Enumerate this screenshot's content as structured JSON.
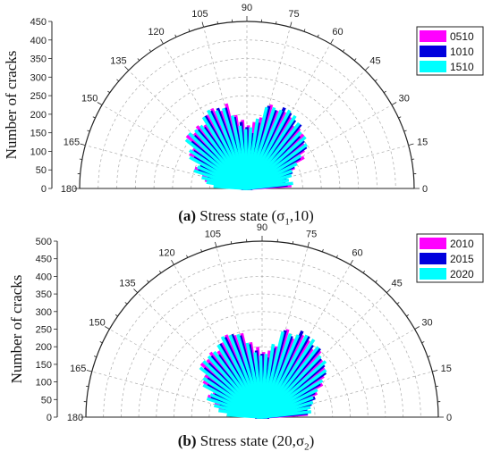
{
  "chart_data": [
    {
      "type": "polar-bar",
      "panel_label": "(a)",
      "caption": "Stress state (σ1,10)",
      "caption_parts": {
        "label": "(a)",
        "text": "Stress state (",
        "sym": "σ",
        "sub": "1",
        "rest": ",10)"
      },
      "ylabel": "Number of cracks",
      "rlim": [
        0,
        450
      ],
      "rticks": [
        0,
        50,
        100,
        150,
        200,
        250,
        300,
        350,
        400,
        450
      ],
      "angle_ticks": [
        0,
        15,
        30,
        45,
        60,
        75,
        90,
        105,
        120,
        135,
        150,
        165,
        180
      ],
      "angles": [
        0,
        5,
        10,
        15,
        20,
        25,
        30,
        35,
        40,
        45,
        50,
        55,
        60,
        65,
        70,
        75,
        80,
        85,
        90,
        95,
        100,
        105,
        110,
        115,
        120,
        125,
        130,
        135,
        140,
        145,
        150,
        155,
        160,
        165,
        170,
        175,
        180
      ],
      "legend_position": "top-right",
      "series": [
        {
          "name": "0510",
          "color": "#ff00ff",
          "values": [
            10,
            120,
            100,
            105,
            120,
            140,
            175,
            185,
            195,
            210,
            215,
            210,
            225,
            230,
            225,
            235,
            195,
            180,
            170,
            185,
            200,
            235,
            220,
            235,
            225,
            205,
            215,
            205,
            215,
            180,
            180,
            140,
            150,
            125,
            115,
            80,
            10
          ]
        },
        {
          "name": "1010",
          "color": "#0000dd",
          "values": [
            15,
            110,
            105,
            110,
            130,
            140,
            165,
            195,
            200,
            200,
            225,
            225,
            235,
            240,
            225,
            230,
            180,
            150,
            165,
            180,
            195,
            225,
            230,
            230,
            225,
            200,
            205,
            200,
            195,
            175,
            165,
            140,
            140,
            110,
            95,
            70,
            15
          ]
        },
        {
          "name": "1510",
          "color": "#00ffff",
          "values": [
            10,
            125,
            115,
            125,
            130,
            150,
            170,
            200,
            210,
            210,
            225,
            235,
            240,
            230,
            230,
            225,
            190,
            165,
            160,
            170,
            200,
            225,
            225,
            235,
            225,
            210,
            210,
            215,
            210,
            185,
            175,
            145,
            150,
            125,
            110,
            90,
            10
          ]
        }
      ]
    },
    {
      "type": "polar-bar",
      "panel_label": "(b)",
      "caption": "Stress state (20,σ2)",
      "caption_parts": {
        "label": "(b)",
        "text": "Stress state (20,",
        "sym": "σ",
        "sub": "2",
        "rest": ")"
      },
      "ylabel": "Number of cracks",
      "rlim": [
        0,
        500
      ],
      "rticks": [
        0,
        50,
        100,
        150,
        200,
        250,
        300,
        350,
        400,
        450,
        500
      ],
      "angle_ticks": [
        0,
        15,
        30,
        45,
        60,
        75,
        90,
        105,
        120,
        135,
        150,
        165,
        180
      ],
      "angles": [
        0,
        5,
        10,
        15,
        20,
        25,
        30,
        35,
        40,
        45,
        50,
        55,
        60,
        65,
        70,
        75,
        80,
        85,
        90,
        95,
        100,
        105,
        110,
        115,
        120,
        125,
        130,
        135,
        140,
        145,
        150,
        155,
        160,
        165,
        170,
        175,
        180
      ],
      "legend_position": "top-right",
      "series": [
        {
          "name": "2010",
          "color": "#ff00ff",
          "values": [
            20,
            130,
            125,
            140,
            150,
            170,
            195,
            210,
            225,
            235,
            250,
            240,
            255,
            260,
            240,
            260,
            205,
            190,
            185,
            200,
            215,
            245,
            245,
            255,
            240,
            225,
            235,
            225,
            230,
            200,
            195,
            155,
            165,
            140,
            125,
            90,
            20
          ]
        },
        {
          "name": "2015",
          "color": "#0000dd",
          "values": [
            20,
            130,
            130,
            145,
            160,
            165,
            190,
            220,
            230,
            235,
            255,
            250,
            265,
            270,
            245,
            255,
            200,
            170,
            180,
            190,
            210,
            240,
            250,
            250,
            240,
            215,
            225,
            215,
            215,
            190,
            180,
            150,
            155,
            125,
            110,
            80,
            20
          ]
        },
        {
          "name": "2020",
          "color": "#00ffff",
          "values": [
            15,
            140,
            140,
            150,
            155,
            175,
            200,
            225,
            240,
            240,
            255,
            265,
            265,
            255,
            250,
            250,
            210,
            180,
            175,
            185,
            215,
            245,
            250,
            255,
            240,
            230,
            230,
            230,
            225,
            200,
            190,
            160,
            165,
            140,
            125,
            100,
            15
          ]
        }
      ]
    }
  ]
}
